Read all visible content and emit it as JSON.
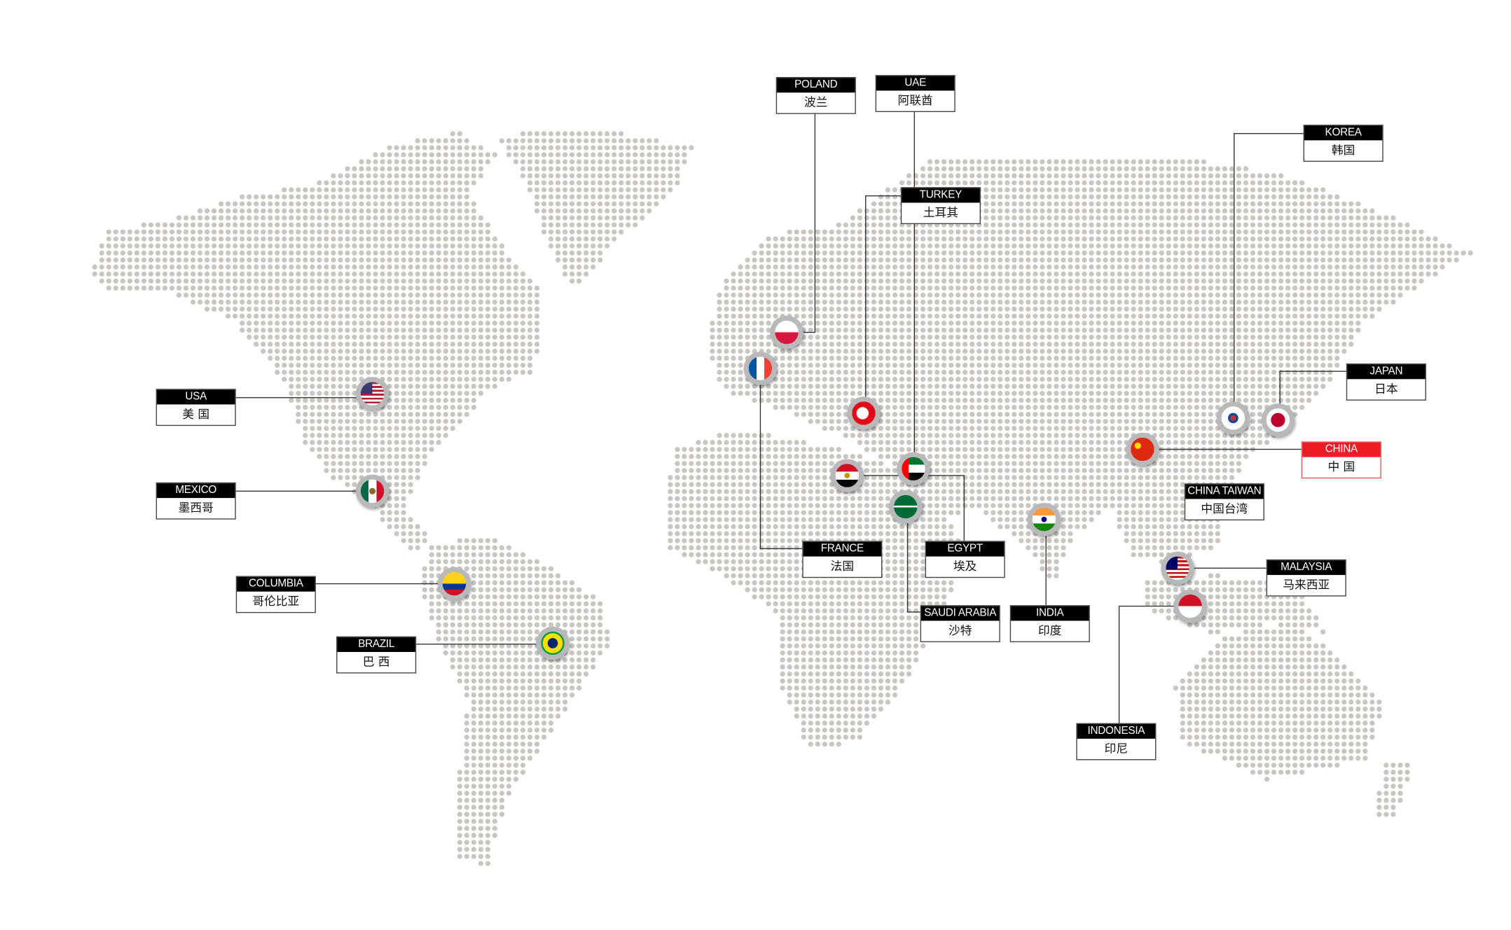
{
  "colors": {
    "dot": "#c9c6c2",
    "label_header": "#000000",
    "highlight": "#ec1c24",
    "line": "#333333"
  },
  "locations": [
    {
      "id": "usa",
      "en": "USA",
      "zh": "美 国",
      "flag": "us-flag-icon"
    },
    {
      "id": "mexico",
      "en": "MEXICO",
      "zh": "墨西哥",
      "flag": "mexico-flag-icon"
    },
    {
      "id": "columbia",
      "en": "COLUMBIA",
      "zh": "哥伦比亚",
      "flag": "colombia-flag-icon"
    },
    {
      "id": "brazil",
      "en": "BRAZIL",
      "zh": "巴 西",
      "flag": "brazil-flag-icon"
    },
    {
      "id": "poland",
      "en": "POLAND",
      "zh": "波兰",
      "flag": "poland-flag-icon"
    },
    {
      "id": "uae",
      "en": "UAE",
      "zh": "阿联酋",
      "flag": "uae-flag-icon"
    },
    {
      "id": "turkey",
      "en": "TURKEY",
      "zh": "土耳其",
      "flag": "turkey-flag-icon"
    },
    {
      "id": "france",
      "en": "FRANCE",
      "zh": "法国",
      "flag": "france-flag-icon"
    },
    {
      "id": "egypt",
      "en": "EGYPT",
      "zh": "埃及",
      "flag": "egypt-flag-icon"
    },
    {
      "id": "saudi",
      "en": "SAUDI ARABIA",
      "zh": "沙特",
      "flag": "saudi-flag-icon"
    },
    {
      "id": "india",
      "en": "INDIA",
      "zh": "印度",
      "flag": "india-flag-icon"
    },
    {
      "id": "korea",
      "en": "KOREA",
      "zh": "韩国",
      "flag": "korea-flag-icon"
    },
    {
      "id": "japan",
      "en": "JAPAN",
      "zh": "日本",
      "flag": "japan-flag-icon"
    },
    {
      "id": "china",
      "en": "CHINA",
      "zh": "中 国",
      "flag": "china-flag-icon",
      "highlighted": true
    },
    {
      "id": "taiwan",
      "en": "CHINA TAIWAN",
      "zh": "中国台湾"
    },
    {
      "id": "malaysia",
      "en": "MALAYSIA",
      "zh": "马来西亚",
      "flag": "malaysia-flag-icon"
    },
    {
      "id": "indonesia",
      "en": "INDONESIA",
      "zh": "印尼",
      "flag": "indonesia-flag-icon"
    }
  ]
}
